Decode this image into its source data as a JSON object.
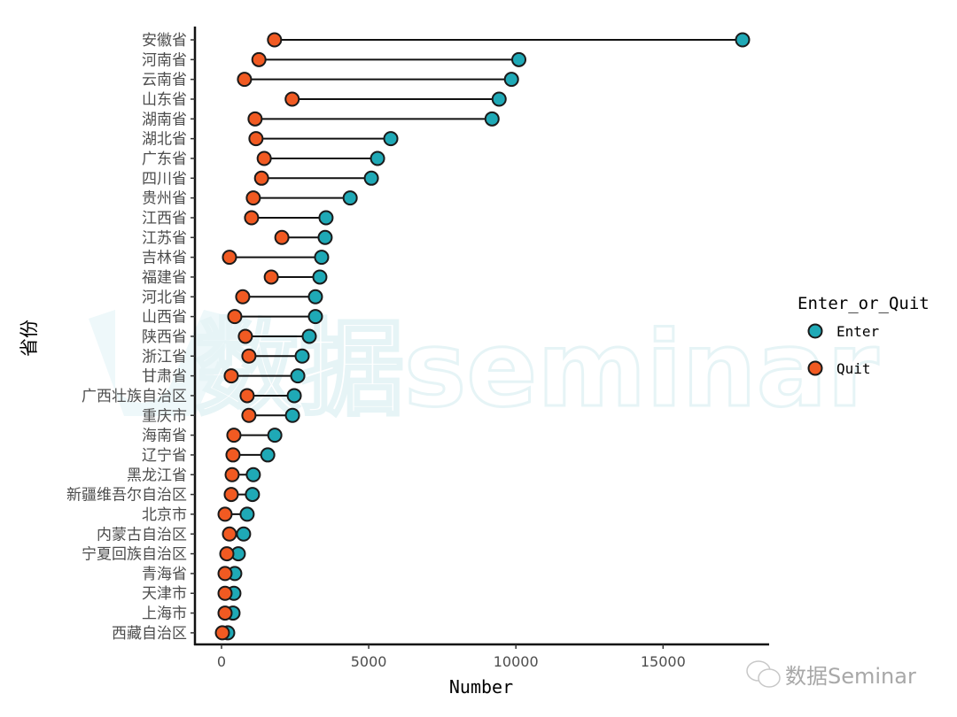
{
  "chart_data": {
    "type": "dumbbell",
    "title": "",
    "xlabel": "Number",
    "ylabel": "省份",
    "xlim": [
      -900,
      18700
    ],
    "x_ticks": [
      0,
      5000,
      10000,
      15000
    ],
    "x_tick_labels": [
      "0",
      "5000",
      "10000",
      "15000"
    ],
    "grid": false,
    "legend": {
      "title": "Enter_or_Quit",
      "position": "right",
      "entries": [
        {
          "name": "Enter",
          "color": "#1fa9b6"
        },
        {
          "name": "Quit",
          "color": "#f15a22"
        }
      ]
    },
    "categories": [
      "安徽省",
      "河南省",
      "云南省",
      "山东省",
      "湖南省",
      "湖北省",
      "广东省",
      "四川省",
      "贵州省",
      "江西省",
      "江苏省",
      "吉林省",
      "福建省",
      "河北省",
      "山西省",
      "陕西省",
      "浙江省",
      "甘肃省",
      "广西壮族自治区",
      "重庆市",
      "海南省",
      "辽宁省",
      "黑龙江省",
      "新疆维吾尔自治区",
      "北京市",
      "内蒙古自治区",
      "宁夏回族自治区",
      "青海省",
      "天津市",
      "上海市",
      "西藏自治区"
    ],
    "series": [
      {
        "name": "Enter",
        "values": [
          17700,
          10100,
          9850,
          9430,
          9190,
          5750,
          5300,
          5090,
          4370,
          3550,
          3520,
          3400,
          3340,
          3190,
          3190,
          2980,
          2740,
          2590,
          2470,
          2410,
          1810,
          1570,
          1080,
          1050,
          870,
          750,
          570,
          450,
          420,
          390,
          210
        ]
      },
      {
        "name": "Quit",
        "values": [
          1800,
          1270,
          780,
          2400,
          1140,
          1170,
          1450,
          1360,
          1080,
          1020,
          2050,
          270,
          1690,
          720,
          450,
          810,
          930,
          330,
          870,
          930,
          420,
          390,
          360,
          330,
          120,
          270,
          180,
          120,
          120,
          120,
          30
        ]
      }
    ]
  },
  "watermark": {
    "center_text": "数据seminar",
    "corner_text": "数据Seminar"
  }
}
